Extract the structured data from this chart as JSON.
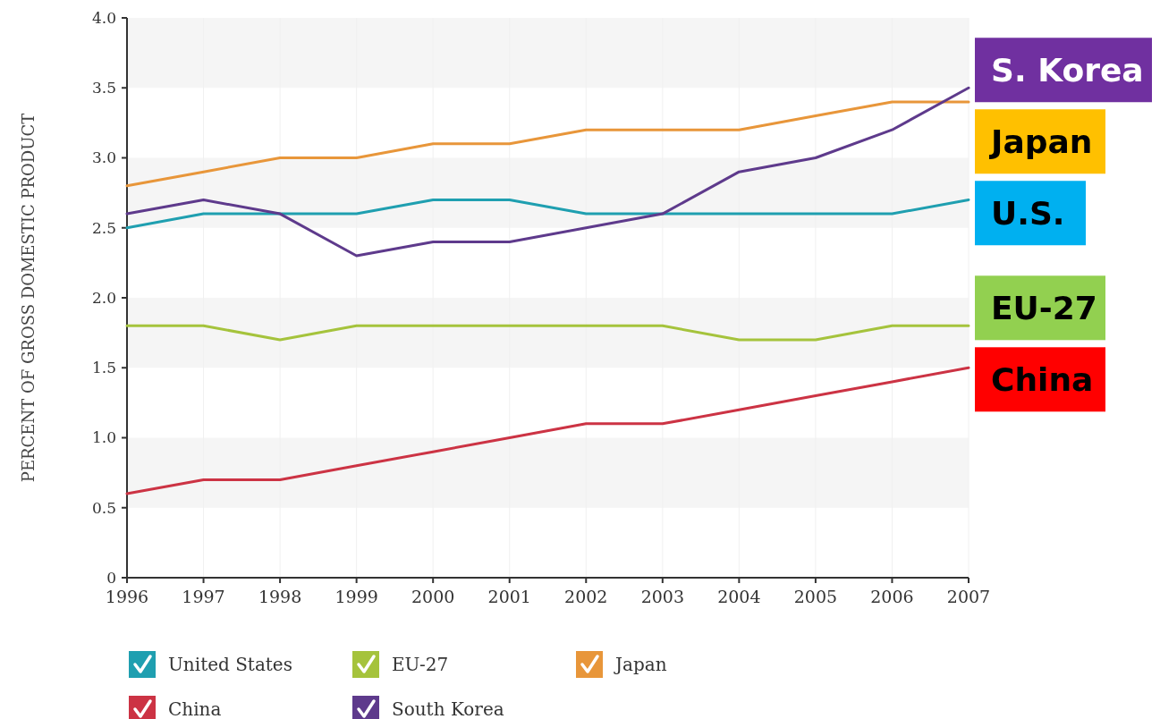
{
  "chart_data": {
    "type": "line",
    "ylabel": "PERCENT OF GROSS DOMESTIC PRODUCT",
    "categories": [
      "1996",
      "1997",
      "1998",
      "1999",
      "2000",
      "2001",
      "2002",
      "2003",
      "2004",
      "2005",
      "2006",
      "2007"
    ],
    "series": [
      {
        "name": "United States",
        "color": "#1f9fb0",
        "values": [
          2.5,
          2.6,
          2.6,
          2.6,
          2.7,
          2.7,
          2.6,
          2.6,
          2.6,
          2.6,
          2.6,
          2.7
        ]
      },
      {
        "name": "EU-27",
        "color": "#a5c33c",
        "values": [
          1.8,
          1.8,
          1.7,
          1.8,
          1.8,
          1.8,
          1.8,
          1.8,
          1.7,
          1.7,
          1.8,
          1.8
        ]
      },
      {
        "name": "Japan",
        "color": "#e8963a",
        "values": [
          2.8,
          2.9,
          3.0,
          3.0,
          3.1,
          3.1,
          3.2,
          3.2,
          3.2,
          3.3,
          3.4,
          3.4
        ]
      },
      {
        "name": "China",
        "color": "#cc3344",
        "values": [
          0.6,
          0.7,
          0.7,
          0.8,
          0.9,
          1.0,
          1.1,
          1.1,
          1.2,
          1.3,
          1.4,
          1.5
        ]
      },
      {
        "name": "South Korea",
        "color": "#5e3a8c",
        "values": [
          2.6,
          2.7,
          2.6,
          2.3,
          2.4,
          2.4,
          2.5,
          2.6,
          2.9,
          3.0,
          3.2,
          3.5
        ]
      }
    ],
    "ylim": [
      0,
      4
    ],
    "yticks": [
      0,
      0.5,
      {
        "value": 1,
        "label": "1.0"
      },
      1.5,
      {
        "value": 2,
        "label": "2.0"
      },
      2.5,
      {
        "value": 3,
        "label": "3.0"
      },
      3.5,
      {
        "value": 4,
        "label": "4.0"
      }
    ],
    "grid": true,
    "legend": "bottom",
    "annotations": [
      {
        "text": "S. Korea",
        "x": "2007",
        "y": 3.5
      },
      {
        "text": "Japan",
        "x": "2007",
        "y": 3.4
      },
      {
        "text": "U.S.",
        "x": "2007",
        "y": 2.7
      },
      {
        "text": "EU-27",
        "x": "2007",
        "y": 1.8
      },
      {
        "text": "China",
        "x": "2007",
        "y": 1.5
      }
    ]
  }
}
